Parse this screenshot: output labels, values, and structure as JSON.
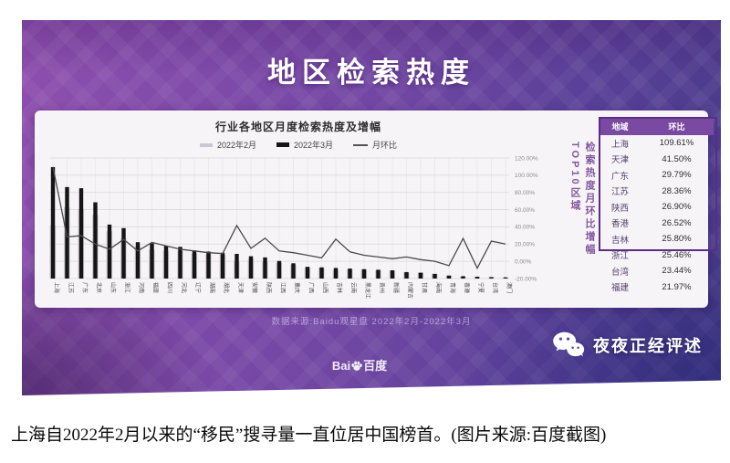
{
  "poster": {
    "title": "地区检索热度",
    "chart": {
      "title": "行业各地区月度检索热度及增幅",
      "legend": [
        {
          "label": "2022年2月",
          "swatch": "bar",
          "color": "#ccc6d1",
          "h": 4
        },
        {
          "label": "2022年3月",
          "swatch": "bar",
          "color": "#151515",
          "h": 5
        },
        {
          "label": "月环比",
          "swatch": "line",
          "color": "#555555",
          "h": 2
        }
      ]
    },
    "side_label": "检索热度月环比增幅TOP10区域",
    "table": {
      "headers": [
        "地域",
        "环比"
      ],
      "rows": [
        {
          "region": "上海",
          "value": "109.61%"
        },
        {
          "region": "天津",
          "value": "41.50%"
        },
        {
          "region": "广东",
          "value": "29.79%"
        },
        {
          "region": "江苏",
          "value": "28.36%"
        },
        {
          "region": "陕西",
          "value": "26.90%"
        },
        {
          "region": "香港",
          "value": "26.52%"
        },
        {
          "region": "吉林",
          "value": "25.80%"
        },
        {
          "region": "浙江",
          "value": "25.46%"
        },
        {
          "region": "台湾",
          "value": "23.44%"
        },
        {
          "region": "福建",
          "value": "21.97%"
        }
      ],
      "highlighted_rows": 8
    },
    "source": "数据来源:Baidu观星盘 2022年2月-2022年3月",
    "logo": {
      "prefix": "Bai",
      "suffix": "百度"
    },
    "watermark": "夜夜正经评述"
  },
  "caption": "上海自2022年2月以来的“移民”搜寻量一直位居中国榜首。(图片来源:百度截图)",
  "colors": {
    "poster_purple": "#7d4aa8",
    "table_header": "#7a4aa3",
    "highlight_border": "#5c2d87",
    "bar_march": "#151515",
    "bar_february": "#ccc6d1",
    "ratio_line": "#4a4a4a"
  },
  "chart_data": {
    "type": "bar",
    "title": "行业各地区月度检索热度及增幅",
    "categories": [
      "上海",
      "江苏",
      "广东",
      "北京",
      "山东",
      "浙江",
      "河南",
      "福建",
      "四川",
      "河北",
      "辽宁",
      "湖南",
      "湖北",
      "天津",
      "安徽",
      "陕西",
      "江西",
      "重庆",
      "广西",
      "山西",
      "吉林",
      "云南",
      "黑龙江",
      "贵州",
      "新疆",
      "内蒙古",
      "甘肃",
      "海南",
      "青海",
      "香港",
      "宁夏",
      "台湾",
      "澳门"
    ],
    "series": [
      {
        "name": "2022年2月",
        "type": "bar",
        "axis": "heat-index",
        "values": [
          45.3,
          60.8,
          59.3,
          54.2,
          40.4,
          34.3,
          27.7,
          24.6,
          23.7,
          23.7,
          21.4,
          20.9,
          20.2,
          14.8,
          16.5,
          14.2,
          13.4,
          11.8,
          9.3,
          9.1,
          7.2,
          7.7,
          7.5,
          7.1,
          6.8,
          5.2,
          4.9,
          4.0,
          2.6,
          1.6,
          1.6,
          1.0,
          0.8
        ]
      },
      {
        "name": "2022年3月",
        "type": "bar",
        "axis": "heat-index",
        "values": [
          95,
          78,
          77,
          65,
          46,
          43,
          31,
          30,
          28,
          27,
          24,
          23,
          22,
          21,
          19,
          18,
          15,
          13,
          10,
          9.5,
          9,
          8.5,
          8,
          7.5,
          7,
          5.5,
          5,
          4,
          2.5,
          2,
          1.5,
          1.2,
          1
        ]
      },
      {
        "name": "月环比",
        "type": "line",
        "axis": "percent",
        "values": [
          109.61,
          28.36,
          29.79,
          20,
          14,
          25.46,
          12,
          21.97,
          18,
          14,
          12,
          10,
          9,
          41.5,
          15,
          26.9,
          12,
          10,
          7,
          4,
          25.8,
          11,
          7,
          5,
          3,
          5,
          2,
          0,
          -5,
          26.52,
          -8,
          23.44,
          20
        ]
      }
    ],
    "y_right": {
      "range": [
        -20,
        120
      ],
      "ticks": [
        "120.00%",
        "100.00%",
        "80.00%",
        "60.00%",
        "40.00%",
        "20.00%",
        "0.00%",
        "-20.00%"
      ]
    },
    "grid": true,
    "legend_position": "top"
  }
}
